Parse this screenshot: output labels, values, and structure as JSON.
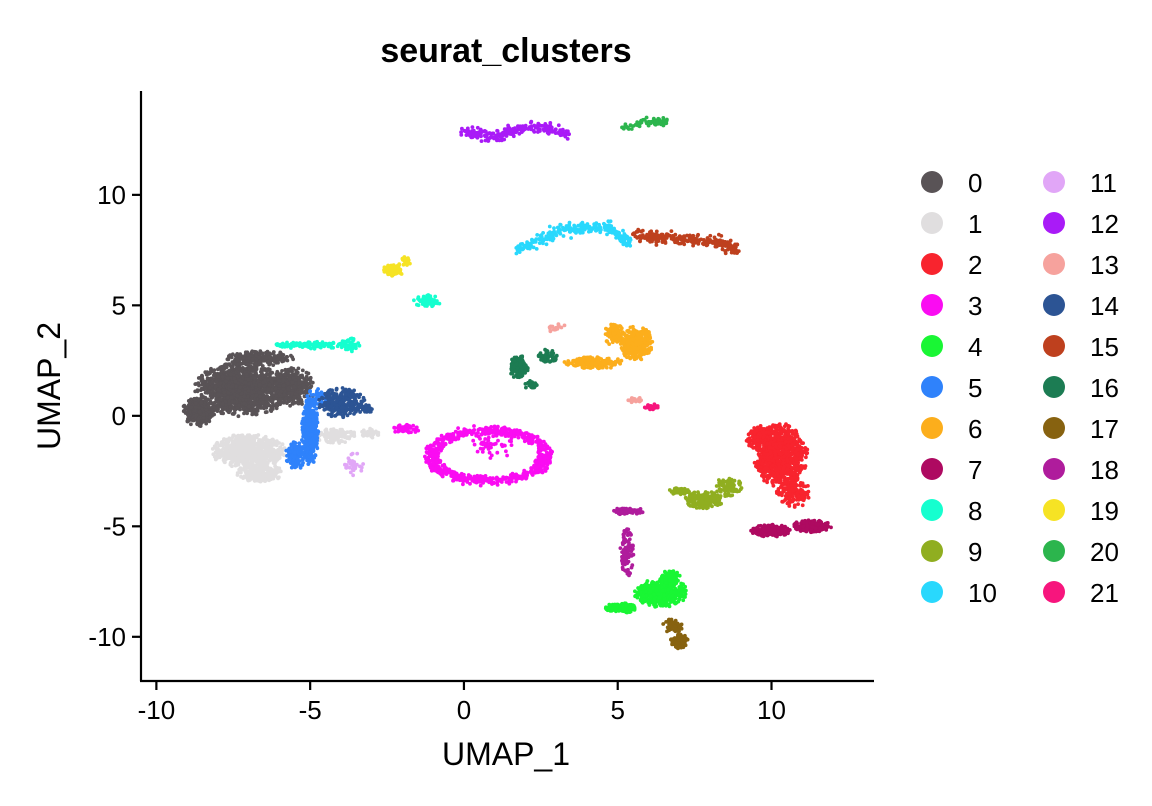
{
  "chart_data": {
    "type": "scatter",
    "title": "seurat_clusters",
    "xlabel": "UMAP_1",
    "ylabel": "UMAP_2",
    "xlim": [
      -10.5,
      13.3
    ],
    "ylim": [
      -12,
      14.7
    ],
    "xticks": [
      -10,
      -5,
      0,
      5,
      10
    ],
    "yticks": [
      -10,
      -5,
      0,
      5,
      10
    ],
    "grid": false,
    "legend_position": "right",
    "series": [
      {
        "name": "0",
        "color": "#595356",
        "blobs": [
          [
            -7.2,
            1.2,
            1.4,
            1.1,
            1500
          ],
          [
            -8.6,
            0.2,
            0.5,
            0.6,
            300
          ],
          [
            -5.6,
            1.3,
            0.7,
            0.8,
            350
          ],
          [
            -6.6,
            2.6,
            1.0,
            0.3,
            200
          ]
        ]
      },
      {
        "name": "1",
        "color": "#e0dedf",
        "blobs": [
          [
            -7.0,
            -1.6,
            1.1,
            0.7,
            700
          ],
          [
            -6.6,
            -2.6,
            0.7,
            0.4,
            250
          ],
          [
            -4.2,
            -0.9,
            0.7,
            0.3,
            120
          ],
          [
            -3.1,
            -0.8,
            0.3,
            0.2,
            40
          ]
        ]
      },
      {
        "name": "2",
        "color": "#f8242e",
        "blobs": [
          [
            10.3,
            -1.8,
            0.8,
            1.3,
            900
          ],
          [
            9.6,
            -1.0,
            0.4,
            0.5,
            150
          ],
          [
            10.7,
            -3.5,
            0.5,
            0.6,
            150
          ]
        ]
      },
      {
        "name": "3",
        "color": "#fa0cf2",
        "ring": [
          0.8,
          -1.8,
          2.0,
          1.25,
          700
        ],
        "blobs": [
          [
            -1.9,
            -0.6,
            0.4,
            0.2,
            50
          ],
          [
            0.9,
            -1.2,
            0.7,
            0.7,
            60
          ]
        ]
      },
      {
        "name": "4",
        "color": "#19f634",
        "blobs": [
          [
            6.4,
            -8.0,
            0.8,
            0.6,
            500
          ],
          [
            5.1,
            -8.7,
            0.5,
            0.2,
            150
          ],
          [
            6.7,
            -7.3,
            0.3,
            0.3,
            80
          ]
        ]
      },
      {
        "name": "5",
        "color": "#2f82fb",
        "blobs": [
          [
            -5.0,
            -0.7,
            0.25,
            1.4,
            450
          ],
          [
            -5.5,
            -1.8,
            0.3,
            0.6,
            120
          ],
          [
            -4.8,
            0.8,
            0.3,
            0.4,
            60
          ]
        ]
      },
      {
        "name": "6",
        "color": "#fcae1c",
        "blobs": [
          [
            5.6,
            3.3,
            0.5,
            0.7,
            350
          ],
          [
            4.2,
            2.4,
            0.9,
            0.25,
            180
          ],
          [
            4.9,
            3.7,
            0.3,
            0.5,
            90
          ]
        ]
      },
      {
        "name": "7",
        "color": "#ae0a61",
        "blobs": [
          [
            10.0,
            -5.2,
            0.6,
            0.25,
            220
          ],
          [
            11.3,
            -5.0,
            0.6,
            0.25,
            200
          ]
        ]
      },
      {
        "name": "8",
        "color": "#15ffcf",
        "blobs": [
          [
            -5.0,
            3.2,
            1.0,
            0.15,
            120
          ],
          [
            -3.7,
            3.2,
            0.3,
            0.3,
            60
          ],
          [
            -1.2,
            5.2,
            0.4,
            0.25,
            70
          ]
        ]
      },
      {
        "name": "9",
        "color": "#90ae20",
        "blobs": [
          [
            7.8,
            -3.8,
            0.6,
            0.35,
            200
          ],
          [
            8.6,
            -3.2,
            0.4,
            0.4,
            80
          ],
          [
            7.0,
            -3.4,
            0.3,
            0.15,
            40
          ]
        ]
      },
      {
        "name": "10",
        "color": "#29d8fd",
        "arc": [
          [
            1.7,
            7.5
          ],
          [
            3.3,
            8.5
          ],
          [
            4.7,
            8.5
          ],
          [
            5.4,
            7.8
          ]
        ],
        "count": 260,
        "spread": 0.12
      },
      {
        "name": "11",
        "color": "#e1a6f7",
        "blobs": [
          [
            -3.6,
            -2.2,
            0.3,
            0.5,
            30
          ]
        ]
      },
      {
        "name": "12",
        "color": "#a91bf7",
        "arc": [
          [
            0.0,
            12.9
          ],
          [
            1.0,
            12.6
          ],
          [
            2.2,
            13.1
          ],
          [
            3.4,
            12.8
          ]
        ],
        "count": 220,
        "spread": 0.12
      },
      {
        "name": "13",
        "color": "#f6a29d",
        "blobs": [
          [
            3.0,
            4.0,
            0.3,
            0.2,
            20
          ],
          [
            5.6,
            0.7,
            0.25,
            0.15,
            20
          ]
        ]
      },
      {
        "name": "14",
        "color": "#2c5494",
        "blobs": [
          [
            -4.0,
            0.6,
            0.7,
            0.6,
            250
          ],
          [
            -3.2,
            0.3,
            0.2,
            0.2,
            30
          ]
        ]
      },
      {
        "name": "15",
        "color": "#be401e",
        "arc": [
          [
            5.5,
            8.2
          ],
          [
            6.8,
            8.0
          ],
          [
            8.2,
            7.9
          ],
          [
            8.9,
            7.5
          ]
        ],
        "count": 260,
        "spread": 0.12
      },
      {
        "name": "16",
        "color": "#1c7c53",
        "blobs": [
          [
            1.8,
            2.2,
            0.3,
            0.5,
            120
          ],
          [
            2.7,
            2.7,
            0.3,
            0.3,
            60
          ],
          [
            2.2,
            1.4,
            0.2,
            0.2,
            30
          ]
        ]
      },
      {
        "name": "17",
        "color": "#876210",
        "blobs": [
          [
            7.0,
            -10.2,
            0.25,
            0.3,
            120
          ],
          [
            6.8,
            -9.5,
            0.3,
            0.3,
            60
          ]
        ]
      },
      {
        "name": "18",
        "color": "#af1c9c",
        "blobs": [
          [
            5.3,
            -6.2,
            0.2,
            1.0,
            100
          ],
          [
            5.3,
            -4.3,
            0.5,
            0.15,
            80
          ]
        ]
      },
      {
        "name": "19",
        "color": "#f6e324",
        "blobs": [
          [
            -2.3,
            6.6,
            0.3,
            0.3,
            90
          ],
          [
            -1.9,
            7.0,
            0.15,
            0.2,
            30
          ]
        ]
      },
      {
        "name": "20",
        "color": "#2cb54d",
        "arc": [
          [
            5.1,
            13.0
          ],
          [
            5.9,
            13.3
          ],
          [
            6.6,
            13.3
          ]
        ],
        "count": 70,
        "spread": 0.08
      },
      {
        "name": "21",
        "color": "#f7157d",
        "blobs": [
          [
            6.1,
            0.4,
            0.2,
            0.12,
            30
          ]
        ]
      }
    ]
  }
}
